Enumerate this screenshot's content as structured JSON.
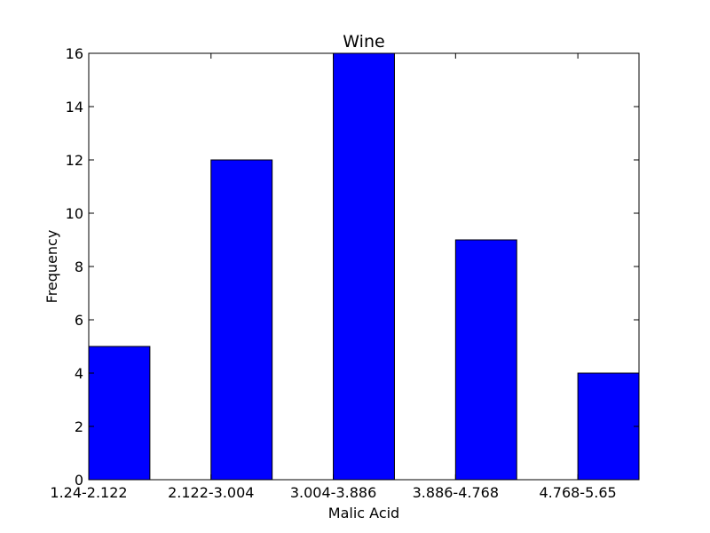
{
  "chart_data": {
    "type": "bar",
    "title": "Wine",
    "xlabel": "Malic Acid",
    "ylabel": "Frequency",
    "categories": [
      "1.24-2.122",
      "2.122-3.004",
      "3.004-3.886",
      "3.886-4.768",
      "4.768-5.65"
    ],
    "values": [
      5,
      12,
      16,
      9,
      4
    ],
    "ylim": [
      0,
      16
    ],
    "yticks": [
      0,
      2,
      4,
      6,
      8,
      10,
      12,
      14,
      16
    ],
    "grid": false,
    "bar_color": "#0000ff",
    "edge_color": "#000000"
  }
}
